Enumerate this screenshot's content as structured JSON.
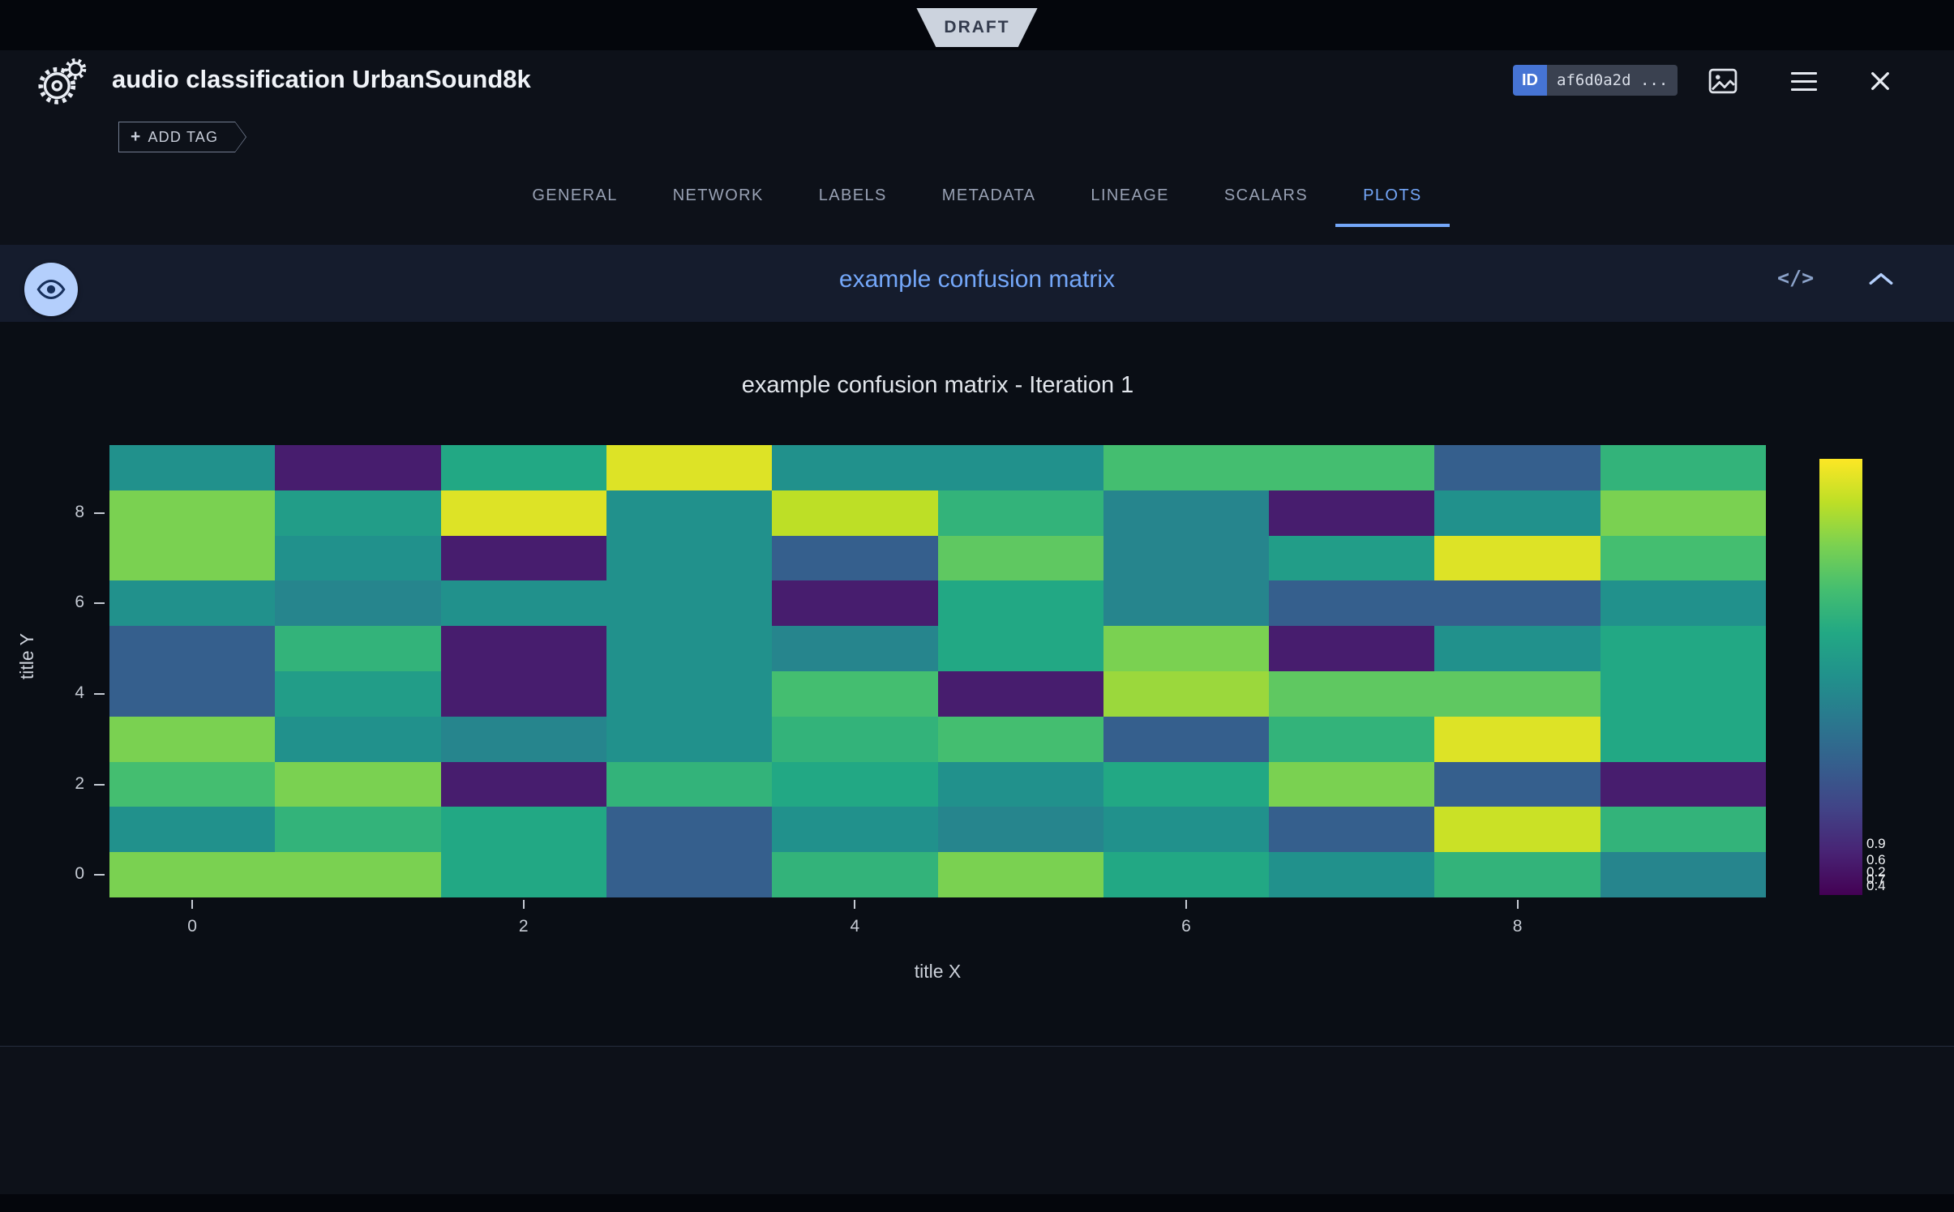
{
  "topbar": {
    "draft_label": "DRAFT"
  },
  "header": {
    "title": "audio classification UrbanSound8k",
    "id_label": "ID",
    "id_value": "af6d0a2d ...",
    "add_tag_plus": "+",
    "add_tag_label": "ADD TAG"
  },
  "tabs": {
    "items": [
      "GENERAL",
      "NETWORK",
      "LABELS",
      "METADATA",
      "LINEAGE",
      "SCALARS",
      "PLOTS"
    ],
    "active_index": 6
  },
  "plot_section": {
    "title": "example confusion matrix",
    "code_icon_label": "</>"
  },
  "colors": {
    "accent": "#74a7f9",
    "band_bg": "#151c2d",
    "page_bg": "#0d1119",
    "canvas_bg": "#0a0e15",
    "id_key_bg": "#4674d4",
    "eye_button_bg": "#b4cffc"
  },
  "chart_data": {
    "type": "heatmap",
    "title": "example confusion matrix - Iteration 1",
    "xlabel": "title X",
    "ylabel": "title Y",
    "x_ticks": [
      0,
      2,
      4,
      6,
      8
    ],
    "y_ticks": [
      0,
      2,
      4,
      6,
      8
    ],
    "x_range": [
      -0.5,
      9.5
    ],
    "y_range": [
      -0.5,
      9.5
    ],
    "grid": false,
    "legend": false,
    "colorbar_position": "right",
    "colorscale": "viridis",
    "colorbar_labels": [
      "0.9",
      "0.6",
      "0.2",
      "0.7",
      "0.4"
    ],
    "z_rows_bottom_to_top": [
      [
        0.8,
        0.8,
        0.6,
        0.3,
        0.65,
        0.8,
        0.6,
        0.5,
        0.65,
        0.45
      ],
      [
        0.5,
        0.65,
        0.6,
        0.3,
        0.5,
        0.45,
        0.5,
        0.3,
        0.92,
        0.65
      ],
      [
        0.7,
        0.8,
        0.08,
        0.65,
        0.6,
        0.5,
        0.6,
        0.8,
        0.3,
        0.08
      ],
      [
        0.8,
        0.5,
        0.45,
        0.5,
        0.65,
        0.7,
        0.3,
        0.65,
        0.95,
        0.6
      ],
      [
        0.3,
        0.55,
        0.08,
        0.5,
        0.7,
        0.08,
        0.85,
        0.75,
        0.75,
        0.6
      ],
      [
        0.3,
        0.65,
        0.08,
        0.5,
        0.45,
        0.6,
        0.8,
        0.08,
        0.5,
        0.6
      ],
      [
        0.5,
        0.45,
        0.5,
        0.5,
        0.08,
        0.6,
        0.45,
        0.3,
        0.3,
        0.5
      ],
      [
        0.8,
        0.5,
        0.08,
        0.5,
        0.3,
        0.75,
        0.45,
        0.55,
        0.95,
        0.7
      ],
      [
        0.8,
        0.55,
        0.95,
        0.5,
        0.9,
        0.65,
        0.45,
        0.08,
        0.5,
        0.8
      ],
      [
        0.5,
        0.08,
        0.6,
        0.95,
        0.5,
        0.5,
        0.7,
        0.7,
        0.3,
        0.65
      ]
    ]
  }
}
